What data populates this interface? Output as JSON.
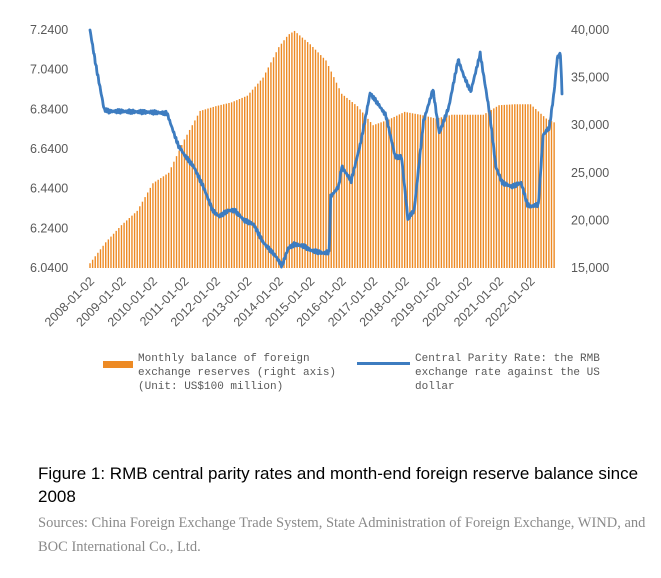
{
  "chart_data": {
    "type": "bar+line",
    "title": "Figure 1: RMB central parity rates and month-end foreign reserve balance since 2008",
    "categories": [
      "2008-01-02",
      "2009-01-02",
      "2010-01-02",
      "2011-01-02",
      "2012-01-02",
      "2013-01-02",
      "2014-01-02",
      "2015-01-02",
      "2016-01-02",
      "2017-01-02",
      "2018-01-02",
      "2019-01-02",
      "2020-01-02",
      "2021-01-02",
      "2022-01-02"
    ],
    "left_axis": {
      "ticks": [
        "7.2400",
        "7.0400",
        "6.8400",
        "6.6400",
        "6.4400",
        "6.2400",
        "6.0400"
      ],
      "min": 6.04,
      "max": 7.24
    },
    "right_axis": {
      "ticks": [
        "40,000",
        "35,000",
        "30,000",
        "25,000",
        "20,000",
        "15,000"
      ],
      "min": 15000,
      "max": 40000
    },
    "series": [
      {
        "name": "Monthly balance of foreign exchange reserves (right axis) (Unit: US$100 million)",
        "type": "bar",
        "axis": "right",
        "color": "#ED8A24",
        "anchors": [
          [
            2008.0,
            15500
          ],
          [
            2008.5,
            17700
          ],
          [
            2009.0,
            19500
          ],
          [
            2009.5,
            21000
          ],
          [
            2010.0,
            23900
          ],
          [
            2010.5,
            25000
          ],
          [
            2011.0,
            28500
          ],
          [
            2011.5,
            31500
          ],
          [
            2012.0,
            32000
          ],
          [
            2012.5,
            32400
          ],
          [
            2013.0,
            33100
          ],
          [
            2013.5,
            35000
          ],
          [
            2014.0,
            38200
          ],
          [
            2014.3,
            39500
          ],
          [
            2014.5,
            39900
          ],
          [
            2015.0,
            38500
          ],
          [
            2015.5,
            36800
          ],
          [
            2016.0,
            33300
          ],
          [
            2016.5,
            32000
          ],
          [
            2017.0,
            30000
          ],
          [
            2017.5,
            30600
          ],
          [
            2018.0,
            31400
          ],
          [
            2018.5,
            31100
          ],
          [
            2019.0,
            30700
          ],
          [
            2019.5,
            31100
          ],
          [
            2020.0,
            31100
          ],
          [
            2020.5,
            31100
          ],
          [
            2021.0,
            32100
          ],
          [
            2021.5,
            32200
          ],
          [
            2022.0,
            32200
          ],
          [
            2022.5,
            30700
          ],
          [
            2022.75,
            30300
          ]
        ]
      },
      {
        "name": "Central Parity Rate: the RMB exchange rate against the US dollar",
        "type": "line",
        "axis": "left",
        "color": "#3D7CC0",
        "anchors": [
          [
            2008.0,
            7.24
          ],
          [
            2008.2,
            7.05
          ],
          [
            2008.45,
            6.84
          ],
          [
            2008.6,
            6.83
          ],
          [
            2009.0,
            6.83
          ],
          [
            2010.0,
            6.825
          ],
          [
            2010.45,
            6.82
          ],
          [
            2010.6,
            6.75
          ],
          [
            2010.8,
            6.66
          ],
          [
            2011.0,
            6.61
          ],
          [
            2011.3,
            6.55
          ],
          [
            2011.6,
            6.45
          ],
          [
            2011.9,
            6.33
          ],
          [
            2012.1,
            6.3
          ],
          [
            2012.4,
            6.33
          ],
          [
            2012.6,
            6.33
          ],
          [
            2012.9,
            6.28
          ],
          [
            2013.2,
            6.26
          ],
          [
            2013.5,
            6.17
          ],
          [
            2013.9,
            6.1
          ],
          [
            2014.1,
            6.05
          ],
          [
            2014.3,
            6.14
          ],
          [
            2014.5,
            6.16
          ],
          [
            2014.8,
            6.15
          ],
          [
            2015.0,
            6.13
          ],
          [
            2015.4,
            6.115
          ],
          [
            2015.6,
            6.12
          ],
          [
            2015.65,
            6.4
          ],
          [
            2015.9,
            6.45
          ],
          [
            2016.0,
            6.55
          ],
          [
            2016.3,
            6.48
          ],
          [
            2016.6,
            6.67
          ],
          [
            2016.9,
            6.92
          ],
          [
            2017.1,
            6.88
          ],
          [
            2017.4,
            6.81
          ],
          [
            2017.7,
            6.6
          ],
          [
            2017.9,
            6.6
          ],
          [
            2018.1,
            6.29
          ],
          [
            2018.3,
            6.33
          ],
          [
            2018.6,
            6.78
          ],
          [
            2018.9,
            6.94
          ],
          [
            2019.1,
            6.72
          ],
          [
            2019.4,
            6.85
          ],
          [
            2019.7,
            7.09
          ],
          [
            2019.9,
            7.0
          ],
          [
            2020.1,
            6.93
          ],
          [
            2020.4,
            7.12
          ],
          [
            2020.7,
            6.82
          ],
          [
            2020.9,
            6.55
          ],
          [
            2021.1,
            6.47
          ],
          [
            2021.4,
            6.45
          ],
          [
            2021.7,
            6.47
          ],
          [
            2021.9,
            6.36
          ],
          [
            2022.0,
            6.35
          ],
          [
            2022.25,
            6.36
          ],
          [
            2022.4,
            6.71
          ],
          [
            2022.6,
            6.75
          ],
          [
            2022.75,
            6.93
          ],
          [
            2022.85,
            7.1
          ],
          [
            2022.95,
            7.12
          ],
          [
            2023.0,
            6.92
          ]
        ]
      }
    ]
  },
  "legend": {
    "bars": "Monthly balance of foreign exchange reserves (right axis) (Unit: US$100 million)",
    "line": "Central Parity Rate: the RMB exchange rate against the US dollar"
  },
  "caption": "Figure 1: RMB central parity rates and month-end foreign reserve balance since 2008",
  "sources": "Sources: China Foreign Exchange Trade System, State Administration of Foreign Exchange, WIND, and BOC International Co., Ltd."
}
